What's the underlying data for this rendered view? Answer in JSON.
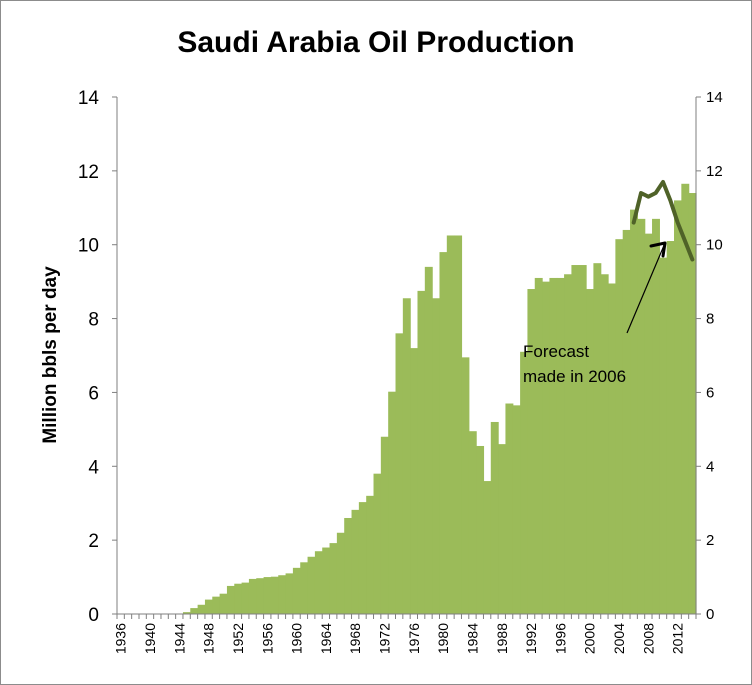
{
  "chart_data": {
    "type": "area",
    "title": "Saudi Arabia Oil Production",
    "ylabel": "Million bbls per day",
    "xlabel": "",
    "ylim": [
      0,
      14
    ],
    "yticks": [
      0,
      2,
      4,
      6,
      8,
      10,
      12,
      14
    ],
    "xticks": [
      "1936",
      "1940",
      "1944",
      "1948",
      "1952",
      "1956",
      "1960",
      "1964",
      "1968",
      "1972",
      "1976",
      "1980",
      "1984",
      "1988",
      "1992",
      "1996",
      "2000",
      "2004",
      "2008",
      "2012"
    ],
    "fill_color": "#9bbb59",
    "grid": false,
    "series": [
      {
        "years": [
          1936,
          1937,
          1938,
          1939,
          1940,
          1941,
          1942,
          1943,
          1944,
          1945,
          1946,
          1947,
          1948,
          1949,
          1950,
          1951,
          1952,
          1953,
          1954,
          1955,
          1956,
          1957,
          1958,
          1959,
          1960,
          1961,
          1962,
          1963,
          1964,
          1965,
          1966,
          1967,
          1968,
          1969,
          1970,
          1971,
          1972,
          1973,
          1974,
          1975,
          1976,
          1977,
          1978,
          1979,
          1980,
          1981,
          1982,
          1983,
          1984,
          1985,
          1986,
          1987,
          1988,
          1989,
          1990,
          1991,
          1992,
          1993,
          1994,
          1995,
          1996,
          1997,
          1998,
          1999,
          2000,
          2001,
          2002,
          2003,
          2004,
          2005,
          2006,
          2007,
          2008,
          2009,
          2010,
          2011,
          2012,
          2013,
          2014
        ],
        "values": [
          0.0,
          0.0,
          0.0,
          0.0,
          0.0,
          0.0,
          0.0,
          0.0,
          0.0,
          0.05,
          0.16,
          0.25,
          0.39,
          0.47,
          0.55,
          0.76,
          0.82,
          0.85,
          0.95,
          0.97,
          1.0,
          1.01,
          1.05,
          1.1,
          1.25,
          1.4,
          1.55,
          1.7,
          1.8,
          1.92,
          2.2,
          2.6,
          2.82,
          3.03,
          3.2,
          3.8,
          4.8,
          6.02,
          7.6,
          8.55,
          7.2,
          8.75,
          9.4,
          8.55,
          9.8,
          10.25,
          10.25,
          6.95,
          4.95,
          4.55,
          3.6,
          5.2,
          4.6,
          5.7,
          5.65,
          7.1,
          8.8,
          9.1,
          9.0,
          9.1,
          9.1,
          9.2,
          9.45,
          9.45,
          8.8,
          9.5,
          9.2,
          8.95,
          10.15,
          10.4,
          10.95,
          10.7,
          10.3,
          10.7,
          9.65,
          10.1,
          11.2,
          11.65,
          11.4
        ]
      },
      {
        "name": "Forecast made in 2006",
        "type": "line",
        "color": "#4f6228",
        "years": [
          2006,
          2007,
          2008,
          2009,
          2010,
          2011,
          2012,
          2013,
          2014
        ],
        "values": [
          10.6,
          11.4,
          11.3,
          11.4,
          11.7,
          11.2,
          10.6,
          10.1,
          9.6
        ]
      }
    ],
    "annotation": {
      "lines": [
        "Forecast",
        "made in 2006"
      ],
      "arrow_to_year": 2010,
      "arrow_to_value": 10.1
    }
  }
}
